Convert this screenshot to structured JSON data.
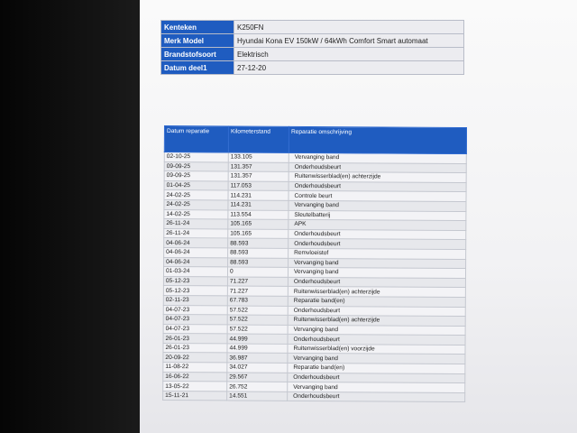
{
  "vehicle": {
    "rows": [
      [
        "Kenteken",
        "K250FN"
      ],
      [
        "Merk Model",
        "Hyundai Kona EV 150kW / 64kWh Comfort Smart automaat"
      ],
      [
        "Brandstofsoort",
        "Elektrisch"
      ],
      [
        "Datum deel1",
        "27-12-20"
      ]
    ]
  },
  "repairs": {
    "header": [
      "Datum reparatie",
      "Kilometerstand",
      "Reparatie omschrijving"
    ],
    "rows": [
      [
        "02-10-25",
        "133.105",
        "Vervanging band"
      ],
      [
        "09-09-25",
        "131.357",
        "Onderhoudsbeurt"
      ],
      [
        "09-09-25",
        "131.357",
        "Ruitenwisserblad(en) achterzijde"
      ],
      [
        "01-04-25",
        "117.053",
        "Onderhoudsbeurt"
      ],
      [
        "24-02-25",
        "114.231",
        "Controle beurt"
      ],
      [
        "24-02-25",
        "114.231",
        "Vervanging band"
      ],
      [
        "14-02-25",
        "113.554",
        "Sleutelbatterij"
      ],
      [
        "26-11-24",
        "105.165",
        "APK"
      ],
      [
        "26-11-24",
        "105.165",
        "Onderhoudsbeurt"
      ],
      [
        "04-06-24",
        "88.593",
        "Onderhoudsbeurt"
      ],
      [
        "04-06-24",
        "88.593",
        "Remvloeistof"
      ],
      [
        "04-06-24",
        "88.593",
        "Vervanging band"
      ],
      [
        "01-03-24",
        "0",
        "Vervanging band"
      ],
      [
        "05-12-23",
        "71.227",
        "Onderhoudsbeurt"
      ],
      [
        "05-12-23",
        "71.227",
        "Ruitenwisserblad(en) achterzijde"
      ],
      [
        "02-11-23",
        "67.783",
        "Reparatie band(en)"
      ],
      [
        "04-07-23",
        "57.522",
        "Onderhoudsbeurt"
      ],
      [
        "04-07-23",
        "57.522",
        "Ruitenwisserblad(en) achterzijde"
      ],
      [
        "04-07-23",
        "57.522",
        "Vervanging band"
      ],
      [
        "26-01-23",
        "44.999",
        "Onderhoudsbeurt"
      ],
      [
        "26-01-23",
        "44.999",
        "Ruitenwisserblad(en) voorzijde"
      ],
      [
        "20-09-22",
        "36.987",
        "Vervanging band"
      ],
      [
        "11-08-22",
        "34.027",
        "Reparatie band(en)"
      ],
      [
        "16-06-22",
        "29.567",
        "Onderhoudsbeurt"
      ],
      [
        "13-05-22",
        "26.752",
        "Vervanging band"
      ],
      [
        "15-11-21",
        "14.551",
        "Onderhoudsbeurt"
      ]
    ]
  }
}
